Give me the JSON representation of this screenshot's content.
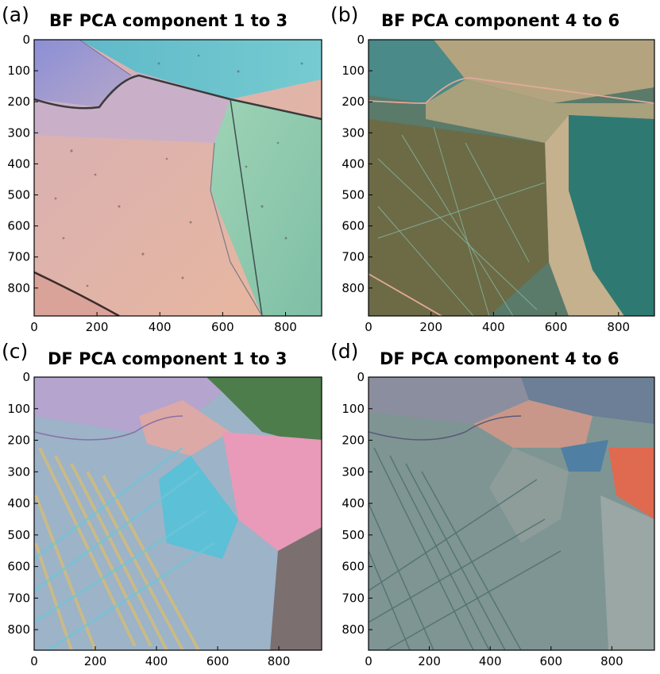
{
  "panels": [
    {
      "letter": "(a)",
      "title": "BF PCA component 1 to 3",
      "x_ticks": [
        "0",
        "200",
        "400",
        "600",
        "800"
      ],
      "y_ticks": [
        "0",
        "100",
        "200",
        "300",
        "400",
        "500",
        "600",
        "700",
        "800"
      ],
      "x_range": [
        0,
        915
      ],
      "y_range": [
        0,
        890
      ],
      "image_description_colors": [
        "#8e8fd4",
        "#d9a99a",
        "#6fc9c8",
        "#8fc7aa",
        "#e6b6a0"
      ]
    },
    {
      "letter": "(b)",
      "title": "BF PCA component 4 to 6",
      "x_ticks": [
        "0",
        "200",
        "400",
        "600",
        "800"
      ],
      "y_ticks": [
        "0",
        "100",
        "200",
        "300",
        "400",
        "500",
        "600",
        "700",
        "800"
      ],
      "x_range": [
        0,
        915
      ],
      "y_range": [
        0,
        890
      ],
      "image_description_colors": [
        "#4b8c86",
        "#b5a882",
        "#6b6a45",
        "#2e7c73",
        "#c4b28f"
      ]
    },
    {
      "letter": "(c)",
      "title": "DF PCA component 1 to 3",
      "x_ticks": [
        "0",
        "200",
        "400",
        "600",
        "800"
      ],
      "y_ticks": [
        "0",
        "100",
        "200",
        "300",
        "400",
        "500",
        "600",
        "700",
        "800"
      ],
      "x_range": [
        0,
        940
      ],
      "y_range": [
        0,
        865
      ],
      "image_description_colors": [
        "#d7a8a4",
        "#6cc4d6",
        "#d9c07a",
        "#e57bb0",
        "#4a7f4b"
      ]
    },
    {
      "letter": "(d)",
      "title": "DF PCA component 4 to 6",
      "x_ticks": [
        "0",
        "200",
        "400",
        "600",
        "800"
      ],
      "y_ticks": [
        "0",
        "100",
        "200",
        "300",
        "400",
        "500",
        "600",
        "700",
        "800"
      ],
      "x_range": [
        0,
        940
      ],
      "y_range": [
        0,
        865
      ],
      "image_description_colors": [
        "#7a8f8e",
        "#c7957f",
        "#5e8aa5",
        "#e06a4f",
        "#8fa6a0"
      ]
    }
  ]
}
